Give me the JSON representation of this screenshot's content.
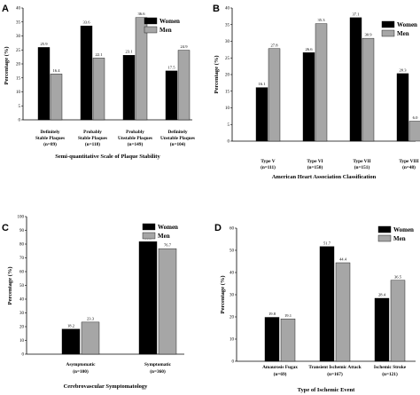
{
  "figure": {
    "colors": {
      "women": "#000000",
      "men": "#a6a6a6",
      "axis": "#000000"
    },
    "legend_women": "Women",
    "legend_men": "Men"
  },
  "chart_data": [
    {
      "panel": "A",
      "type": "bar",
      "ylabel": "Percentage (%)",
      "xlabel": "Semi-quantitative Scale of Plaque Stability",
      "ylim": [
        0,
        40
      ],
      "yticks": [
        0,
        5,
        10,
        15,
        20,
        25,
        30,
        35,
        40
      ],
      "categories": [
        [
          "Definitely",
          "Stable Plaques",
          "(n=89)"
        ],
        [
          "Probably",
          "Stable Plaques",
          "(n=118)"
        ],
        [
          "Probably",
          "Unstable Plaques",
          "(n=149)"
        ],
        [
          "Definitely",
          "Unstable Plaques",
          "(n=104)"
        ]
      ],
      "series": [
        {
          "name": "Women",
          "values": [
            25.9,
            33.6,
            23.1,
            17.5
          ],
          "labels": [
            "25.9",
            "33.6",
            "23.1",
            "17.5"
          ]
        },
        {
          "name": "Men",
          "values": [
            16.4,
            22.1,
            36.6,
            24.9
          ],
          "labels": [
            "16.4",
            "22.1",
            "36.6",
            "24.9"
          ]
        }
      ],
      "legend": "top-right"
    },
    {
      "panel": "B",
      "type": "bar",
      "ylabel": "Percentage (%)",
      "xlabel": "American Heart Association Classification",
      "ylim": [
        0,
        40
      ],
      "yticks": [
        0,
        5,
        10,
        15,
        20,
        25,
        30,
        35,
        40
      ],
      "categories": [
        [
          "Type V",
          "(n=111)"
        ],
        [
          "Type VI",
          "(n=150)"
        ],
        [
          "Type VII",
          "(n=151)"
        ],
        [
          "Type VIII",
          "(n=48)"
        ]
      ],
      "series": [
        {
          "name": "Women",
          "values": [
            16.1,
            26.6,
            37.1,
            20.3
          ],
          "labels": [
            "16.1",
            "26.6",
            "37.1",
            "20.3"
          ]
        },
        {
          "name": "Men",
          "values": [
            27.8,
            35.3,
            30.9,
            6.0
          ],
          "labels": [
            "27.8",
            "35.3",
            "30.9",
            "6.0"
          ]
        }
      ],
      "legend": "top-right"
    },
    {
      "panel": "C",
      "type": "bar",
      "ylabel": "Percentage (%)",
      "xlabel": "Cerebrovascular Symptomatology",
      "ylim": [
        0,
        100
      ],
      "yticks": [
        0,
        10,
        20,
        30,
        40,
        50,
        60,
        70,
        80,
        90,
        100
      ],
      "categories": [
        [
          "Asymptomatic",
          "(n=100)"
        ],
        [
          "Symptomatic",
          "(n=360)"
        ]
      ],
      "series": [
        {
          "name": "Women",
          "values": [
            18.2,
            81.8
          ],
          "labels": [
            "18.2",
            "81.8"
          ]
        },
        {
          "name": "Men",
          "values": [
            23.3,
            76.7
          ],
          "labels": [
            "23.3",
            "76.7"
          ]
        }
      ],
      "legend": "top-right"
    },
    {
      "panel": "D",
      "type": "bar",
      "ylabel": "Percentage (%)",
      "xlabel": "Type of Ischemic Event",
      "ylim": [
        0,
        60
      ],
      "yticks": [
        0,
        10,
        20,
        30,
        40,
        50,
        60
      ],
      "categories": [
        [
          "Amaurosis Fugax",
          "(n=69)"
        ],
        [
          "Transient Ischemic Attack",
          "(n=167)"
        ],
        [
          "Ischemic Stroke",
          "(n=121)"
        ]
      ],
      "series": [
        {
          "name": "Women",
          "values": [
            19.8,
            51.7,
            28.4
          ],
          "labels": [
            "19.8",
            "51.7",
            "28.4"
          ]
        },
        {
          "name": "Men",
          "values": [
            19.1,
            44.4,
            36.5
          ],
          "labels": [
            "19.1",
            "44.4",
            "36.5"
          ]
        }
      ],
      "legend": "top-right"
    }
  ]
}
